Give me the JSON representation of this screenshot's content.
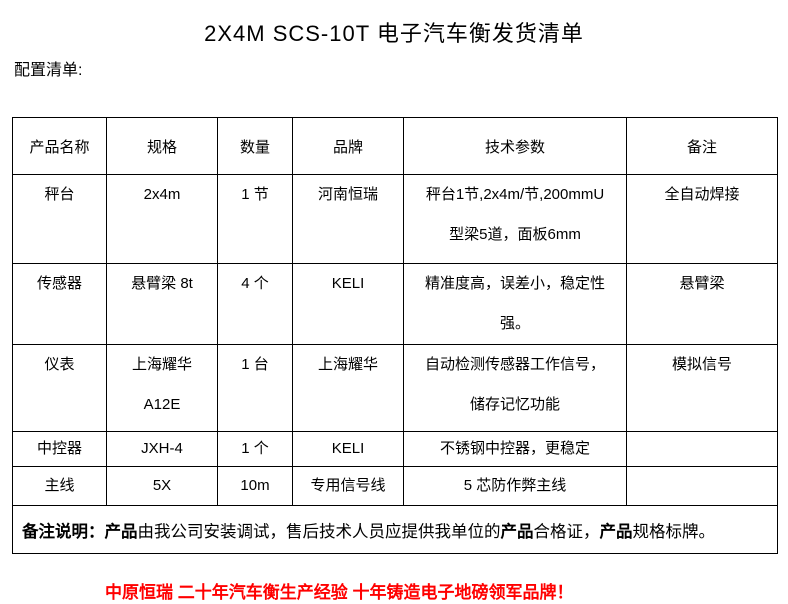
{
  "page": {
    "title": "2X4M SCS-10T 电子汽车衡发货清单",
    "section_label": "配置清单:"
  },
  "table": {
    "headers": [
      "产品名称",
      "规格",
      "数量",
      "品牌",
      "技术参数",
      "备注"
    ],
    "rows": [
      {
        "cells": [
          [
            "秤台"
          ],
          [
            "2x4m"
          ],
          [
            "1 节"
          ],
          [
            "河南恒瑞"
          ],
          [
            "秤台1节,2x4m/节,200mmU",
            "型梁5道，面板6mm"
          ],
          [
            "全自动焊接"
          ]
        ]
      },
      {
        "cells": [
          [
            "传感器"
          ],
          [
            "悬臂梁 8t"
          ],
          [
            "4 个"
          ],
          [
            "KELI"
          ],
          [
            "精准度高，误差小，稳定性",
            "强。"
          ],
          [
            "悬臂梁"
          ]
        ]
      },
      {
        "cells": [
          [
            "仪表"
          ],
          [
            "上海耀华",
            "A12E"
          ],
          [
            "1 台"
          ],
          [
            "上海耀华"
          ],
          [
            "自动检测传感器工作信号，",
            "储存记忆功能"
          ],
          [
            "模拟信号"
          ]
        ]
      },
      {
        "cells": [
          [
            "中控器"
          ],
          [
            "JXH-4"
          ],
          [
            "1 个"
          ],
          [
            "KELI"
          ],
          [
            "不锈钢中控器，更稳定"
          ],
          [
            ""
          ]
        ]
      },
      {
        "cells": [
          [
            "主线"
          ],
          [
            "5X"
          ],
          [
            "10m"
          ],
          [
            "专用信号线"
          ],
          [
            "5 芯防作弊主线"
          ],
          [
            ""
          ]
        ]
      }
    ],
    "remark": {
      "segments": [
        {
          "text": "备注说明："
        },
        {
          "text": "产品"
        },
        {
          "text": "由我公司安装调试，售后技术人员应提供我单位的"
        },
        {
          "text": "产品"
        },
        {
          "text": "合格证，"
        },
        {
          "text": "产品"
        },
        {
          "text": "规格标牌。"
        }
      ]
    }
  },
  "footer": {
    "slogan": "中原恒瑞 二十年汽车衡生产经验 十年铸造电子地磅领军品牌！",
    "slogan_color": "#ff0000",
    "text_color": "#000000",
    "border_color": "#000000"
  }
}
